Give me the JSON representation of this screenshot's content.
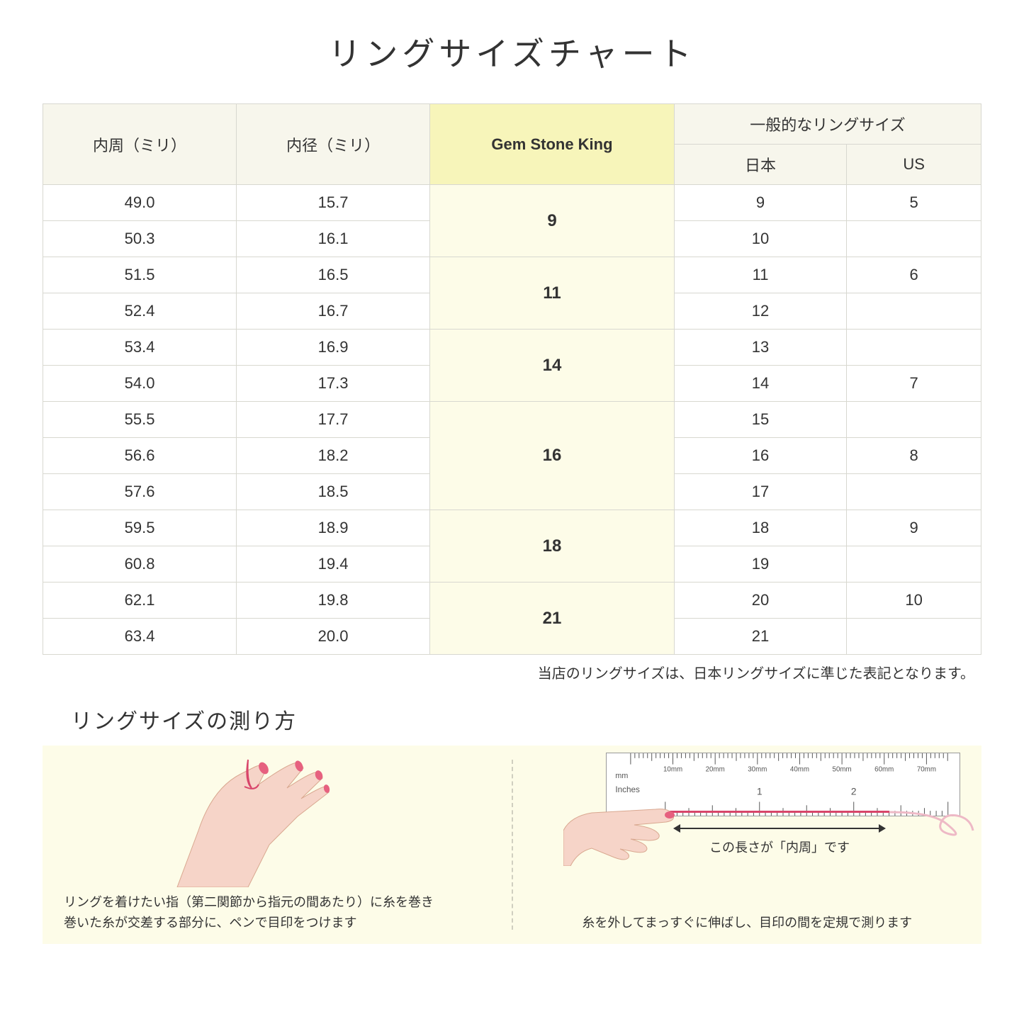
{
  "title": "リングサイズチャート",
  "table": {
    "headers": {
      "circumference": "内周（ミリ）",
      "diameter": "内径（ミリ）",
      "gsk": "Gem Stone King",
      "general_group": "一般的なリングサイズ",
      "japan": "日本",
      "us": "US"
    },
    "header_bg": "#f7f6ec",
    "gsk_header_bg": "#f7f5ba",
    "gsk_cell_bg": "#fdfce8",
    "border_color": "#d8d8d0",
    "groups": [
      {
        "gsk": "9",
        "rows": [
          {
            "circ": "49.0",
            "dia": "15.7",
            "jp": "9",
            "us": "5"
          },
          {
            "circ": "50.3",
            "dia": "16.1",
            "jp": "10",
            "us": ""
          }
        ]
      },
      {
        "gsk": "11",
        "rows": [
          {
            "circ": "51.5",
            "dia": "16.5",
            "jp": "11",
            "us": "6"
          },
          {
            "circ": "52.4",
            "dia": "16.7",
            "jp": "12",
            "us": ""
          }
        ]
      },
      {
        "gsk": "14",
        "rows": [
          {
            "circ": "53.4",
            "dia": "16.9",
            "jp": "13",
            "us": ""
          },
          {
            "circ": "54.0",
            "dia": "17.3",
            "jp": "14",
            "us": "7"
          }
        ]
      },
      {
        "gsk": "16",
        "rows": [
          {
            "circ": "55.5",
            "dia": "17.7",
            "jp": "15",
            "us": ""
          },
          {
            "circ": "56.6",
            "dia": "18.2",
            "jp": "16",
            "us": "8"
          },
          {
            "circ": "57.6",
            "dia": "18.5",
            "jp": "17",
            "us": ""
          }
        ]
      },
      {
        "gsk": "18",
        "rows": [
          {
            "circ": "59.5",
            "dia": "18.9",
            "jp": "18",
            "us": "9"
          },
          {
            "circ": "60.8",
            "dia": "19.4",
            "jp": "19",
            "us": ""
          }
        ]
      },
      {
        "gsk": "21",
        "rows": [
          {
            "circ": "62.1",
            "dia": "19.8",
            "jp": "20",
            "us": "10"
          },
          {
            "circ": "63.4",
            "dia": "20.0",
            "jp": "21",
            "us": ""
          }
        ]
      }
    ]
  },
  "note": "当店のリングサイズは、日本リングサイズに準じた表記となります。",
  "howto": {
    "title": "リングサイズの測り方",
    "panel_bg": "#fdfce8",
    "left_text_line1": "リングを着けたい指（第二関節から指元の間あたり）に糸を巻き",
    "left_text_line2": "巻いた糸が交差する部分に、ペンで目印をつけます",
    "right_arrow_label": "この長さが「内周」です",
    "right_text": "糸を外してまっすぐに伸ばし、目印の間を定規で測ります",
    "ruler_labels_mm": [
      "10mm",
      "20mm",
      "30mm",
      "40mm",
      "50mm",
      "60mm",
      "70mm"
    ],
    "ruler_mm_label": "mm",
    "ruler_inches_label": "Inches",
    "ruler_inch_numbers": [
      "1",
      "2"
    ],
    "skin_color": "#f6d4c8",
    "nail_color": "#e6617f",
    "thread_color": "#d8456a"
  }
}
